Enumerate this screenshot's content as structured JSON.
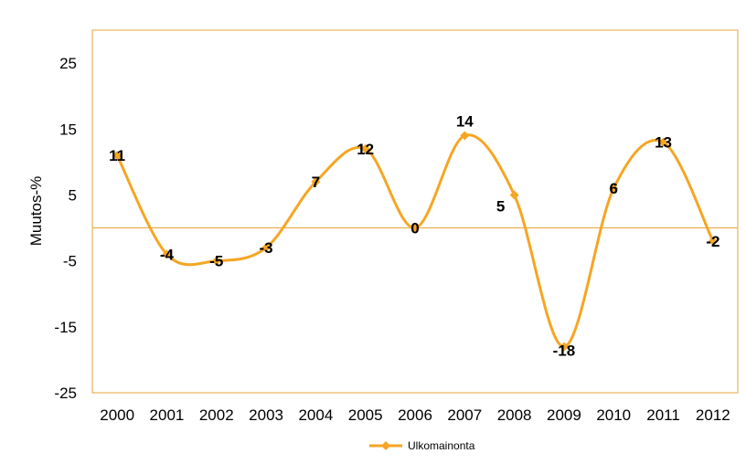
{
  "chart_data": {
    "type": "line",
    "title": "",
    "xlabel": "",
    "ylabel": "Muutos-%",
    "categories": [
      "2000",
      "2001",
      "2002",
      "2003",
      "2004",
      "2005",
      "2006",
      "2007",
      "2008",
      "2009",
      "2010",
      "2011",
      "2012"
    ],
    "series": [
      {
        "name": "Ulkomainonta",
        "values": [
          11,
          -4,
          -5,
          -3,
          7,
          12,
          0,
          14,
          5,
          -18,
          6,
          13,
          -2
        ]
      }
    ],
    "ylim": [
      -25,
      30
    ],
    "yticks": [
      -25,
      -15,
      -5,
      5,
      15,
      25
    ],
    "line_color": "#F5A623",
    "marker": "diamond",
    "smooth": true,
    "grid": false,
    "legend": "bottom",
    "data_labels": true
  }
}
